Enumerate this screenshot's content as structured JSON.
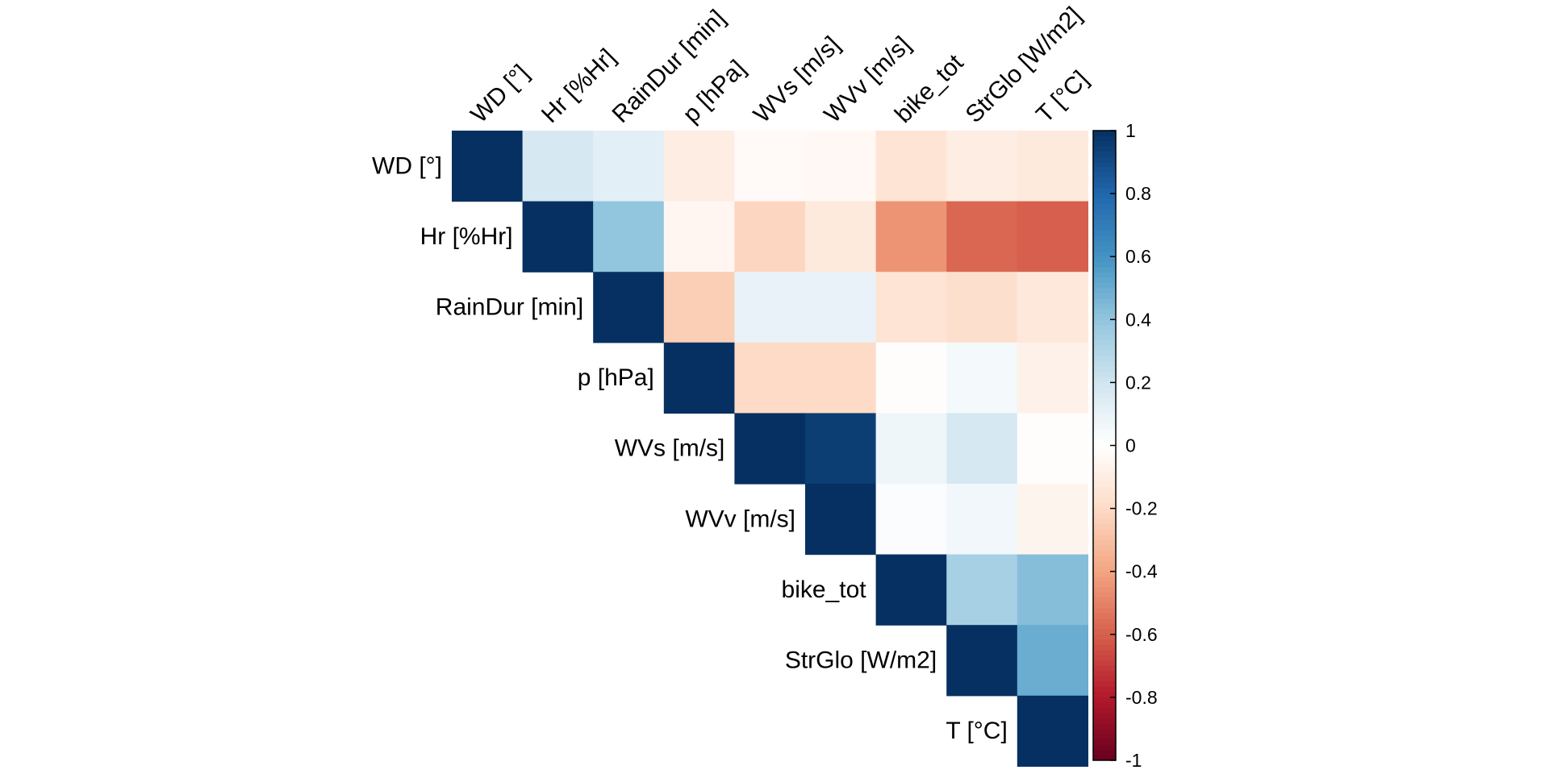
{
  "chart_data": {
    "type": "heatmap",
    "title": "",
    "layout": "upper-triangle",
    "variables": [
      "WD [°]",
      "Hr [%Hr]",
      "RainDur [min]",
      "p [hPa]",
      "WVs [m/s]",
      "WVv [m/s]",
      "bike_tot",
      "StrGlo [W/m2]",
      "T [°C]"
    ],
    "cells": [
      {
        "row": "WD [°]",
        "col": "WD [°]",
        "value": 1.0
      },
      {
        "row": "WD [°]",
        "col": "Hr [%Hr]",
        "value": 0.18
      },
      {
        "row": "WD [°]",
        "col": "RainDur [min]",
        "value": 0.12
      },
      {
        "row": "WD [°]",
        "col": "p [hPa]",
        "value": -0.1
      },
      {
        "row": "WD [°]",
        "col": "WVs [m/s]",
        "value": -0.03
      },
      {
        "row": "WD [°]",
        "col": "WVv [m/s]",
        "value": -0.04
      },
      {
        "row": "WD [°]",
        "col": "bike_tot",
        "value": -0.15
      },
      {
        "row": "WD [°]",
        "col": "StrGlo [W/m2]",
        "value": -0.1
      },
      {
        "row": "WD [°]",
        "col": "T [°C]",
        "value": -0.12
      },
      {
        "row": "Hr [%Hr]",
        "col": "Hr [%Hr]",
        "value": 1.0
      },
      {
        "row": "Hr [%Hr]",
        "col": "RainDur [min]",
        "value": 0.4
      },
      {
        "row": "Hr [%Hr]",
        "col": "p [hPa]",
        "value": -0.05
      },
      {
        "row": "Hr [%Hr]",
        "col": "WVs [m/s]",
        "value": -0.22
      },
      {
        "row": "Hr [%Hr]",
        "col": "WVv [m/s]",
        "value": -0.12
      },
      {
        "row": "Hr [%Hr]",
        "col": "bike_tot",
        "value": -0.45
      },
      {
        "row": "Hr [%Hr]",
        "col": "StrGlo [W/m2]",
        "value": -0.58
      },
      {
        "row": "Hr [%Hr]",
        "col": "T [°C]",
        "value": -0.6
      },
      {
        "row": "RainDur [min]",
        "col": "RainDur [min]",
        "value": 1.0
      },
      {
        "row": "RainDur [min]",
        "col": "p [hPa]",
        "value": -0.25
      },
      {
        "row": "RainDur [min]",
        "col": "WVs [m/s]",
        "value": 0.1
      },
      {
        "row": "RainDur [min]",
        "col": "WVv [m/s]",
        "value": 0.1
      },
      {
        "row": "RainDur [min]",
        "col": "bike_tot",
        "value": -0.15
      },
      {
        "row": "RainDur [min]",
        "col": "StrGlo [W/m2]",
        "value": -0.18
      },
      {
        "row": "RainDur [min]",
        "col": "T [°C]",
        "value": -0.13
      },
      {
        "row": "p [hPa]",
        "col": "p [hPa]",
        "value": 1.0
      },
      {
        "row": "p [hPa]",
        "col": "WVs [m/s]",
        "value": -0.2
      },
      {
        "row": "p [hPa]",
        "col": "WVv [m/s]",
        "value": -0.2
      },
      {
        "row": "p [hPa]",
        "col": "bike_tot",
        "value": -0.01
      },
      {
        "row": "p [hPa]",
        "col": "StrGlo [W/m2]",
        "value": 0.05
      },
      {
        "row": "p [hPa]",
        "col": "T [°C]",
        "value": -0.08
      },
      {
        "row": "WVs [m/s]",
        "col": "WVs [m/s]",
        "value": 1.0
      },
      {
        "row": "WVs [m/s]",
        "col": "WVv [m/s]",
        "value": 0.95
      },
      {
        "row": "WVs [m/s]",
        "col": "bike_tot",
        "value": 0.07
      },
      {
        "row": "WVs [m/s]",
        "col": "StrGlo [W/m2]",
        "value": 0.18
      },
      {
        "row": "WVs [m/s]",
        "col": "T [°C]",
        "value": -0.01
      },
      {
        "row": "WVv [m/s]",
        "col": "WVv [m/s]",
        "value": 1.0
      },
      {
        "row": "WVv [m/s]",
        "col": "bike_tot",
        "value": 0.02
      },
      {
        "row": "WVv [m/s]",
        "col": "StrGlo [W/m2]",
        "value": 0.06
      },
      {
        "row": "WVv [m/s]",
        "col": "T [°C]",
        "value": -0.06
      },
      {
        "row": "bike_tot",
        "col": "bike_tot",
        "value": 1.0
      },
      {
        "row": "bike_tot",
        "col": "StrGlo [W/m2]",
        "value": 0.33
      },
      {
        "row": "bike_tot",
        "col": "T [°C]",
        "value": 0.43
      },
      {
        "row": "StrGlo [W/m2]",
        "col": "StrGlo [W/m2]",
        "value": 1.0
      },
      {
        "row": "StrGlo [W/m2]",
        "col": "T [°C]",
        "value": 0.5
      },
      {
        "row": "T [°C]",
        "col": "T [°C]",
        "value": 1.0
      }
    ],
    "colorbar": {
      "range": [
        -1,
        1
      ],
      "ticks": [
        "1",
        "0.8",
        "0.6",
        "0.4",
        "0.2",
        "0",
        "-0.2",
        "-0.4",
        "-0.6",
        "-0.8",
        "-1"
      ]
    },
    "colors": {
      "stops": [
        "#67001F",
        "#B2182B",
        "#D6604D",
        "#F4A582",
        "#FDDBC7",
        "#FFFFFF",
        "#D1E5F0",
        "#92C5DE",
        "#4393C3",
        "#2166AC",
        "#053061"
      ]
    }
  }
}
